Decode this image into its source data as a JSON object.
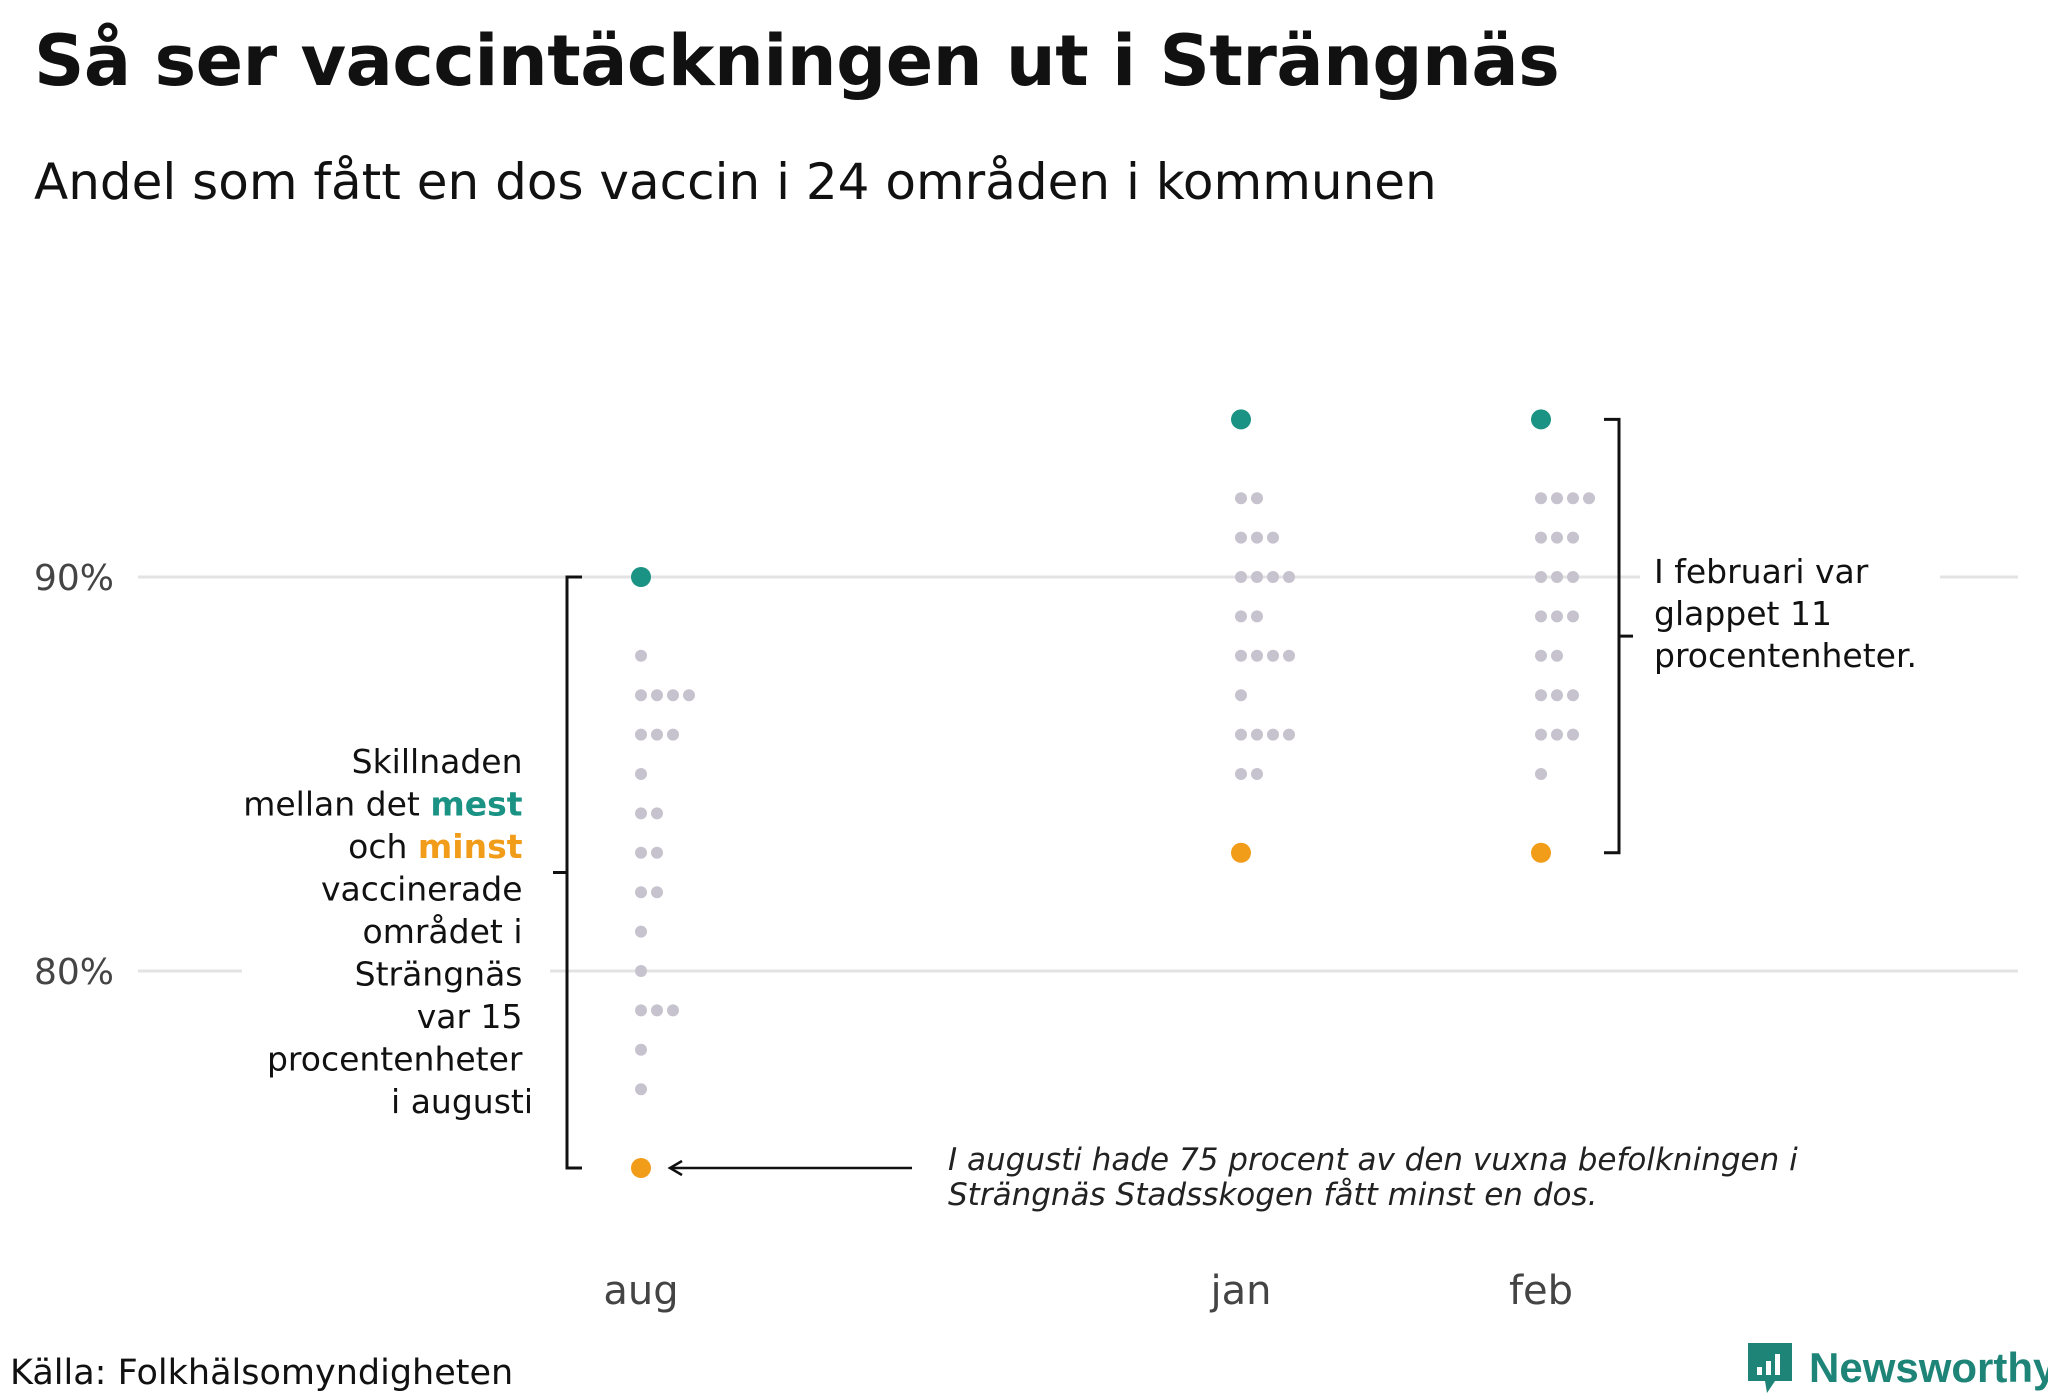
{
  "title": "Så ser vaccintäckningen ut i Strängnäs",
  "subtitle": "Andel som fått en dos vaccin i 24 områden i kommunen",
  "source": "Källa: Folkhälsomyndigheten",
  "brand": "Newsworthy",
  "colors": {
    "max": "#1a9284",
    "min": "#f29d1a",
    "other": "#c6c3ce",
    "grid": "#e3e3e6",
    "text": "#111111"
  },
  "annotations": {
    "left": {
      "line1": "Skillnaden",
      "line2_pre": "mellan det ",
      "line2_hl": "mest",
      "line3_pre": "och ",
      "line3_hl": "minst",
      "line4": "vaccinerade",
      "line5": "området i",
      "line6": "Strängnäs",
      "line7": "var 15 ",
      "line8": "procentenheter",
      "line9": "i augusti"
    },
    "right": {
      "line1": "I februari var",
      "line2": "glappet 11",
      "line3": "procentenheter."
    },
    "bottom": {
      "line1": "I augusti hade 75 procent av den vuxna befolkningen i",
      "line2": "Strängnäs Stadsskogen fått minst en dos."
    }
  },
  "chart_data": {
    "type": "scatter",
    "title": "Så ser vaccintäckningen ut i Strängnäs",
    "subtitle": "Andel som fått en dos vaccin i 24 områden i kommunen",
    "xlabel": "",
    "ylabel": "",
    "ylim": [
      72,
      96
    ],
    "yticks": [
      80,
      90
    ],
    "ytick_labels": [
      "80%",
      "90%"
    ],
    "grid": true,
    "categories": [
      "aug",
      "jan",
      "feb"
    ],
    "x_positions": [
      0,
      2,
      3
    ],
    "series": [
      {
        "name": "aug",
        "max": 90,
        "min": 75,
        "others": [
          [
            88,
            1
          ],
          [
            87,
            4
          ],
          [
            86,
            3
          ],
          [
            85,
            1
          ],
          [
            84,
            2
          ],
          [
            83,
            2
          ],
          [
            82,
            2
          ],
          [
            81,
            1
          ],
          [
            80,
            1
          ],
          [
            79,
            3
          ],
          [
            78,
            1
          ],
          [
            77,
            1
          ]
        ]
      },
      {
        "name": "jan",
        "max": 94,
        "min": 83,
        "others": [
          [
            92,
            2
          ],
          [
            91,
            3
          ],
          [
            90,
            4
          ],
          [
            89,
            2
          ],
          [
            88,
            4
          ],
          [
            87,
            1
          ],
          [
            86,
            4
          ],
          [
            85,
            2
          ]
        ]
      },
      {
        "name": "feb",
        "max": 94,
        "min": 83,
        "others": [
          [
            92,
            4
          ],
          [
            91,
            3
          ],
          [
            90,
            3
          ],
          [
            89,
            3
          ],
          [
            88,
            2
          ],
          [
            87,
            3
          ],
          [
            86,
            3
          ],
          [
            85,
            1
          ]
        ]
      }
    ]
  }
}
